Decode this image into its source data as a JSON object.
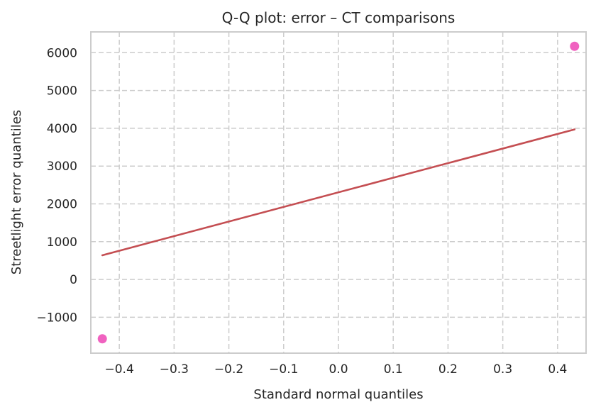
{
  "chart_data": {
    "type": "scatter",
    "title": "Q-Q plot: error – CT comparisons",
    "xlabel": "Standard normal quantiles",
    "ylabel": "Streetlight error quantiles",
    "xlim": [
      -0.452,
      0.452
    ],
    "ylim": [
      -1950,
      6550
    ],
    "xticks": [
      -0.4,
      -0.3,
      -0.2,
      -0.1,
      0.0,
      0.1,
      0.2,
      0.3,
      0.4
    ],
    "xtick_labels": [
      "−0.4",
      "−0.3",
      "−0.2",
      "−0.1",
      "0.0",
      "0.1",
      "0.2",
      "0.3",
      "0.4"
    ],
    "yticks": [
      -1000,
      0,
      1000,
      2000,
      3000,
      4000,
      5000,
      6000
    ],
    "ytick_labels": [
      "−1000",
      "0",
      "1000",
      "2000",
      "3000",
      "4000",
      "5000",
      "6000"
    ],
    "grid": true,
    "points": [
      {
        "x": -0.431,
        "y": -1570
      },
      {
        "x": 0.431,
        "y": 6170
      }
    ],
    "reference_line": {
      "x": [
        -0.431,
        0.431
      ],
      "y": [
        640,
        3970
      ]
    },
    "colors": {
      "points": "#f062c0",
      "line": "#c44e52"
    }
  }
}
